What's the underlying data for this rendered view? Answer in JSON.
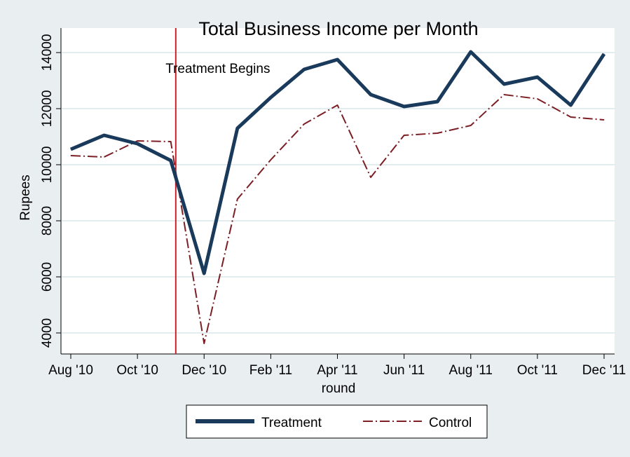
{
  "chart_data": {
    "type": "line",
    "title": "Total Business Income per Month",
    "xlabel": "round",
    "ylabel": "Rupees",
    "ylim": [
      3500,
      15000
    ],
    "yticks": [
      4000,
      6000,
      8000,
      10000,
      12000,
      14000
    ],
    "ytick_labels": [
      "4000",
      "6000",
      "8000",
      "10000",
      "12000",
      "14000"
    ],
    "x": [
      "Aug '10",
      "Sep '10",
      "Oct '10",
      "Nov '10",
      "Dec '10",
      "Jan '11",
      "Feb '11",
      "Mar '11",
      "Apr '11",
      "May '11",
      "Jun '11",
      "Jul '11",
      "Aug '11",
      "Sep '11",
      "Oct '11",
      "Nov '11",
      "Dec '11"
    ],
    "xtick_labels": [
      "Aug '10",
      "Oct '10",
      "Dec '10",
      "Feb '11",
      "Apr '11",
      "Jun '11",
      "Aug '11",
      "Oct '11",
      "Dec '11"
    ],
    "xtick_indices": [
      0,
      2,
      4,
      6,
      8,
      10,
      12,
      14,
      16
    ],
    "grid": true,
    "annotation": {
      "text": "Treatment Begins",
      "x_index": 3.15,
      "color": "#c8232c"
    },
    "series": [
      {
        "name": "Treatment",
        "color": "#1a3a5c",
        "style": "solid",
        "values": [
          10550,
          11050,
          10750,
          10150,
          6125,
          11300,
          12400,
          13400,
          13750,
          12500,
          12075,
          12250,
          14025,
          12875,
          13125,
          12125,
          13950
        ]
      },
      {
        "name": "Control",
        "color": "#7b1f25",
        "style": "dashdot",
        "values": [
          10325,
          10275,
          10850,
          10825,
          3625,
          8775,
          10175,
          11450,
          12125,
          9550,
          11050,
          11125,
          11400,
          12500,
          12350,
          11700,
          11600
        ]
      }
    ],
    "legend_position": "bottom"
  }
}
